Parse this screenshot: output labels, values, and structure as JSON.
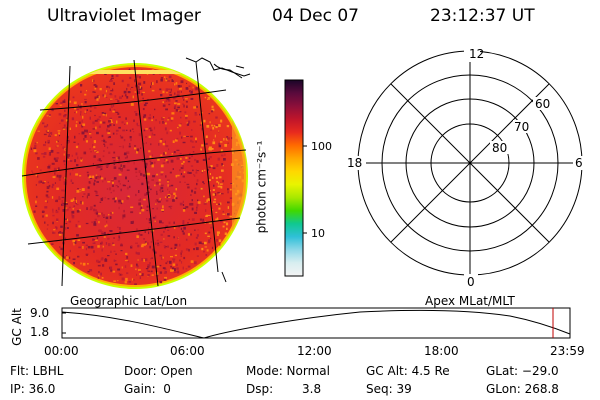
{
  "header": {
    "title": "Ultraviolet Imager",
    "date": "04 Dec 07",
    "time": "23:12:37 UT"
  },
  "imager": {
    "label": "Geographic Lat/Lon",
    "colors": {
      "fill": "#e8262a",
      "dark": "#9e1630",
      "ring_outer": "#c8ff00",
      "ring_inner": "#ffb000"
    }
  },
  "colorbar": {
    "unit_label": "photon cm⁻²s⁻¹",
    "ticks": [
      "100",
      "10"
    ],
    "gradient": [
      "#1a0528",
      "#5a0a3c",
      "#8c0f3a",
      "#c0152a",
      "#e82a1e",
      "#ff6a00",
      "#ffa800",
      "#ffd800",
      "#e8f400",
      "#a8e800",
      "#40d800",
      "#10c890",
      "#30c0d8",
      "#90d8e8",
      "#d8eef0",
      "#f4f4f4"
    ]
  },
  "polar": {
    "label": "Apex MLat/MLT",
    "mlt_labels": {
      "top": "12",
      "left": "18",
      "right": "6",
      "bottom": "0"
    },
    "lat_labels": [
      "60",
      "70",
      "80"
    ]
  },
  "timeline": {
    "ylabel": "GC Alt",
    "y_ticks": [
      "9.0",
      "1.8"
    ],
    "x_ticks": [
      "00:00",
      "06:00",
      "12:00",
      "18:00",
      "23:59"
    ],
    "marker_color": "#c00000"
  },
  "status": {
    "row1": {
      "flt": "Flt: LBHL",
      "door": "Door: Open",
      "mode": "Mode: Normal",
      "gcalt": "GC Alt: 4.5 Re",
      "glat": "GLat: −29.0"
    },
    "row2": {
      "ip": "IP: 36.0",
      "gain": "Gain:  0",
      "dsp_label": "Dsp:",
      "dsp_value": "3.8",
      "seq": "Seq: 39",
      "glon": "GLon: 268.8"
    }
  }
}
